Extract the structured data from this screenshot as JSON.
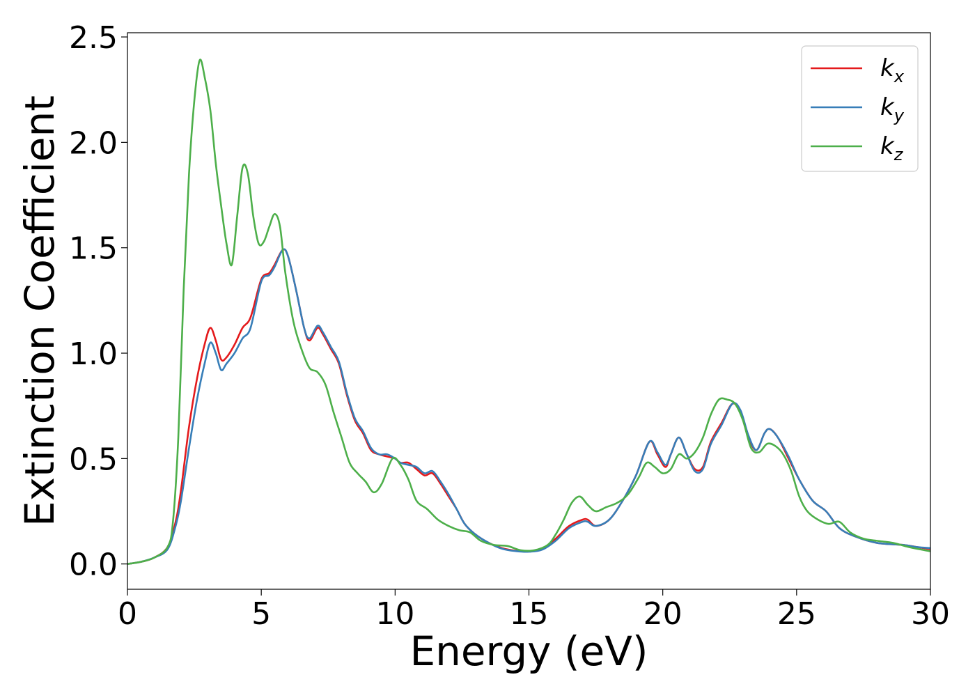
{
  "chart_data": {
    "type": "line",
    "title": "",
    "xlabel": "Energy (eV)",
    "ylabel": "Extinction Coefficient",
    "xlim": [
      0,
      30
    ],
    "ylim": [
      -0.12,
      2.52
    ],
    "xticks": [
      0,
      5,
      10,
      15,
      20,
      25,
      30
    ],
    "yticks": [
      0.0,
      0.5,
      1.0,
      1.5,
      2.0,
      2.5
    ],
    "xtick_labels": [
      "0",
      "5",
      "10",
      "15",
      "20",
      "25",
      "30"
    ],
    "ytick_labels": [
      "0.0",
      "0.5",
      "1.0",
      "1.5",
      "2.0",
      "2.5"
    ],
    "grid": false,
    "legend_position": "top-right",
    "series": [
      {
        "name": "k_x",
        "legend": {
          "base": "k",
          "sub": "x"
        },
        "color": "#e41a1c",
        "points": [
          [
            0,
            0
          ],
          [
            0.5,
            0.01
          ],
          [
            1,
            0.03
          ],
          [
            1.5,
            0.08
          ],
          [
            1.8,
            0.2
          ],
          [
            2,
            0.35
          ],
          [
            2.3,
            0.65
          ],
          [
            2.6,
            0.88
          ],
          [
            2.9,
            1.05
          ],
          [
            3.1,
            1.12
          ],
          [
            3.3,
            1.06
          ],
          [
            3.5,
            0.97
          ],
          [
            3.7,
            0.98
          ],
          [
            4,
            1.04
          ],
          [
            4.3,
            1.12
          ],
          [
            4.6,
            1.17
          ],
          [
            5,
            1.35
          ],
          [
            5.3,
            1.38
          ],
          [
            5.5,
            1.42
          ],
          [
            5.8,
            1.49
          ],
          [
            6,
            1.46
          ],
          [
            6.3,
            1.3
          ],
          [
            6.6,
            1.12
          ],
          [
            6.8,
            1.06
          ],
          [
            7.1,
            1.12
          ],
          [
            7.3,
            1.09
          ],
          [
            7.6,
            1.02
          ],
          [
            7.9,
            0.95
          ],
          [
            8.2,
            0.8
          ],
          [
            8.5,
            0.68
          ],
          [
            8.8,
            0.62
          ],
          [
            9.1,
            0.54
          ],
          [
            9.4,
            0.52
          ],
          [
            9.7,
            0.51
          ],
          [
            10,
            0.5
          ],
          [
            10.2,
            0.48
          ],
          [
            10.5,
            0.48
          ],
          [
            10.8,
            0.45
          ],
          [
            11.1,
            0.42
          ],
          [
            11.4,
            0.43
          ],
          [
            11.7,
            0.38
          ],
          [
            12,
            0.32
          ],
          [
            12.3,
            0.26
          ],
          [
            12.6,
            0.19
          ],
          [
            13,
            0.14
          ],
          [
            13.5,
            0.1
          ],
          [
            14,
            0.075
          ],
          [
            14.5,
            0.063
          ],
          [
            15,
            0.06
          ],
          [
            15.5,
            0.07
          ],
          [
            16,
            0.12
          ],
          [
            16.5,
            0.18
          ],
          [
            17,
            0.21
          ],
          [
            17.2,
            0.21
          ],
          [
            17.5,
            0.18
          ],
          [
            18,
            0.21
          ],
          [
            18.5,
            0.3
          ],
          [
            19,
            0.42
          ],
          [
            19.5,
            0.58
          ],
          [
            19.8,
            0.52
          ],
          [
            20.1,
            0.46
          ],
          [
            20.3,
            0.52
          ],
          [
            20.6,
            0.6
          ],
          [
            20.9,
            0.52
          ],
          [
            21.2,
            0.45
          ],
          [
            21.5,
            0.46
          ],
          [
            21.8,
            0.58
          ],
          [
            22.2,
            0.67
          ],
          [
            22.6,
            0.76
          ],
          [
            22.9,
            0.72
          ],
          [
            23.2,
            0.6
          ],
          [
            23.5,
            0.54
          ],
          [
            23.8,
            0.62
          ],
          [
            24,
            0.64
          ],
          [
            24.3,
            0.6
          ],
          [
            24.7,
            0.5
          ],
          [
            25.1,
            0.4
          ],
          [
            25.6,
            0.3
          ],
          [
            26.1,
            0.25
          ],
          [
            26.6,
            0.17
          ],
          [
            27.2,
            0.13
          ],
          [
            28,
            0.1
          ],
          [
            29,
            0.09
          ],
          [
            29.5,
            0.08
          ],
          [
            30,
            0.07
          ]
        ]
      },
      {
        "name": "k_y",
        "legend": {
          "base": "k",
          "sub": "y"
        },
        "color": "#377eb8",
        "points": [
          [
            0,
            0
          ],
          [
            0.5,
            0.01
          ],
          [
            1,
            0.03
          ],
          [
            1.5,
            0.07
          ],
          [
            1.8,
            0.18
          ],
          [
            2,
            0.3
          ],
          [
            2.3,
            0.55
          ],
          [
            2.6,
            0.78
          ],
          [
            2.9,
            0.96
          ],
          [
            3.1,
            1.05
          ],
          [
            3.3,
            1.0
          ],
          [
            3.5,
            0.92
          ],
          [
            3.7,
            0.95
          ],
          [
            4,
            1.0
          ],
          [
            4.3,
            1.07
          ],
          [
            4.6,
            1.12
          ],
          [
            5,
            1.34
          ],
          [
            5.3,
            1.37
          ],
          [
            5.5,
            1.41
          ],
          [
            5.8,
            1.49
          ],
          [
            6,
            1.46
          ],
          [
            6.3,
            1.3
          ],
          [
            6.6,
            1.12
          ],
          [
            6.8,
            1.07
          ],
          [
            7.1,
            1.13
          ],
          [
            7.3,
            1.1
          ],
          [
            7.6,
            1.03
          ],
          [
            7.9,
            0.96
          ],
          [
            8.2,
            0.81
          ],
          [
            8.5,
            0.69
          ],
          [
            8.8,
            0.63
          ],
          [
            9.1,
            0.55
          ],
          [
            9.4,
            0.52
          ],
          [
            9.7,
            0.52
          ],
          [
            10,
            0.5
          ],
          [
            10.2,
            0.48
          ],
          [
            10.5,
            0.47
          ],
          [
            10.8,
            0.46
          ],
          [
            11.1,
            0.43
          ],
          [
            11.4,
            0.44
          ],
          [
            11.7,
            0.39
          ],
          [
            12,
            0.33
          ],
          [
            12.3,
            0.26
          ],
          [
            12.6,
            0.19
          ],
          [
            13,
            0.14
          ],
          [
            13.5,
            0.1
          ],
          [
            14,
            0.072
          ],
          [
            14.5,
            0.061
          ],
          [
            15,
            0.058
          ],
          [
            15.5,
            0.068
          ],
          [
            16,
            0.11
          ],
          [
            16.5,
            0.17
          ],
          [
            17,
            0.2
          ],
          [
            17.2,
            0.2
          ],
          [
            17.5,
            0.18
          ],
          [
            18,
            0.21
          ],
          [
            18.5,
            0.3
          ],
          [
            19,
            0.42
          ],
          [
            19.5,
            0.58
          ],
          [
            19.8,
            0.53
          ],
          [
            20.1,
            0.47
          ],
          [
            20.3,
            0.52
          ],
          [
            20.6,
            0.6
          ],
          [
            20.9,
            0.52
          ],
          [
            21.2,
            0.44
          ],
          [
            21.5,
            0.45
          ],
          [
            21.8,
            0.57
          ],
          [
            22.2,
            0.66
          ],
          [
            22.6,
            0.76
          ],
          [
            22.9,
            0.73
          ],
          [
            23.2,
            0.61
          ],
          [
            23.5,
            0.54
          ],
          [
            23.8,
            0.62
          ],
          [
            24,
            0.64
          ],
          [
            24.3,
            0.6
          ],
          [
            24.7,
            0.51
          ],
          [
            25.1,
            0.4
          ],
          [
            25.6,
            0.3
          ],
          [
            26.1,
            0.25
          ],
          [
            26.6,
            0.17
          ],
          [
            27.2,
            0.13
          ],
          [
            28,
            0.1
          ],
          [
            29,
            0.09
          ],
          [
            29.5,
            0.08
          ],
          [
            30,
            0.075
          ]
        ]
      },
      {
        "name": "k_z",
        "legend": {
          "base": "k",
          "sub": "z"
        },
        "color": "#4daf4a",
        "points": [
          [
            0,
            0
          ],
          [
            0.5,
            0.01
          ],
          [
            1,
            0.03
          ],
          [
            1.5,
            0.08
          ],
          [
            1.7,
            0.2
          ],
          [
            1.9,
            0.6
          ],
          [
            2.1,
            1.3
          ],
          [
            2.3,
            1.85
          ],
          [
            2.5,
            2.2
          ],
          [
            2.7,
            2.39
          ],
          [
            2.9,
            2.3
          ],
          [
            3.1,
            2.15
          ],
          [
            3.3,
            1.9
          ],
          [
            3.5,
            1.7
          ],
          [
            3.7,
            1.52
          ],
          [
            3.9,
            1.42
          ],
          [
            4.1,
            1.65
          ],
          [
            4.3,
            1.88
          ],
          [
            4.5,
            1.85
          ],
          [
            4.7,
            1.65
          ],
          [
            4.9,
            1.52
          ],
          [
            5.1,
            1.53
          ],
          [
            5.3,
            1.6
          ],
          [
            5.5,
            1.66
          ],
          [
            5.7,
            1.6
          ],
          [
            5.9,
            1.38
          ],
          [
            6.2,
            1.15
          ],
          [
            6.5,
            1.02
          ],
          [
            6.8,
            0.93
          ],
          [
            7.1,
            0.91
          ],
          [
            7.4,
            0.85
          ],
          [
            7.7,
            0.72
          ],
          [
            8,
            0.6
          ],
          [
            8.3,
            0.48
          ],
          [
            8.6,
            0.43
          ],
          [
            8.9,
            0.39
          ],
          [
            9.2,
            0.34
          ],
          [
            9.5,
            0.38
          ],
          [
            9.9,
            0.5
          ],
          [
            10.2,
            0.47
          ],
          [
            10.5,
            0.4
          ],
          [
            10.8,
            0.3
          ],
          [
            11.2,
            0.26
          ],
          [
            11.6,
            0.21
          ],
          [
            12,
            0.18
          ],
          [
            12.4,
            0.16
          ],
          [
            12.8,
            0.15
          ],
          [
            13.2,
            0.11
          ],
          [
            13.7,
            0.09
          ],
          [
            14.2,
            0.085
          ],
          [
            14.7,
            0.065
          ],
          [
            15.2,
            0.065
          ],
          [
            15.7,
            0.09
          ],
          [
            16,
            0.14
          ],
          [
            16.3,
            0.21
          ],
          [
            16.6,
            0.29
          ],
          [
            16.9,
            0.32
          ],
          [
            17.2,
            0.28
          ],
          [
            17.5,
            0.25
          ],
          [
            17.9,
            0.27
          ],
          [
            18.3,
            0.29
          ],
          [
            18.7,
            0.33
          ],
          [
            19.1,
            0.41
          ],
          [
            19.4,
            0.48
          ],
          [
            19.7,
            0.46
          ],
          [
            20,
            0.43
          ],
          [
            20.3,
            0.45
          ],
          [
            20.6,
            0.52
          ],
          [
            20.9,
            0.5
          ],
          [
            21.2,
            0.53
          ],
          [
            21.5,
            0.6
          ],
          [
            21.8,
            0.71
          ],
          [
            22.1,
            0.78
          ],
          [
            22.4,
            0.78
          ],
          [
            22.7,
            0.76
          ],
          [
            23,
            0.68
          ],
          [
            23.3,
            0.55
          ],
          [
            23.6,
            0.53
          ],
          [
            23.9,
            0.57
          ],
          [
            24.2,
            0.56
          ],
          [
            24.5,
            0.52
          ],
          [
            24.8,
            0.44
          ],
          [
            25.1,
            0.32
          ],
          [
            25.4,
            0.25
          ],
          [
            25.8,
            0.21
          ],
          [
            26.2,
            0.19
          ],
          [
            26.6,
            0.2
          ],
          [
            27,
            0.15
          ],
          [
            27.5,
            0.12
          ],
          [
            28,
            0.11
          ],
          [
            28.6,
            0.1
          ],
          [
            29.2,
            0.08
          ],
          [
            30,
            0.06
          ]
        ]
      }
    ]
  }
}
